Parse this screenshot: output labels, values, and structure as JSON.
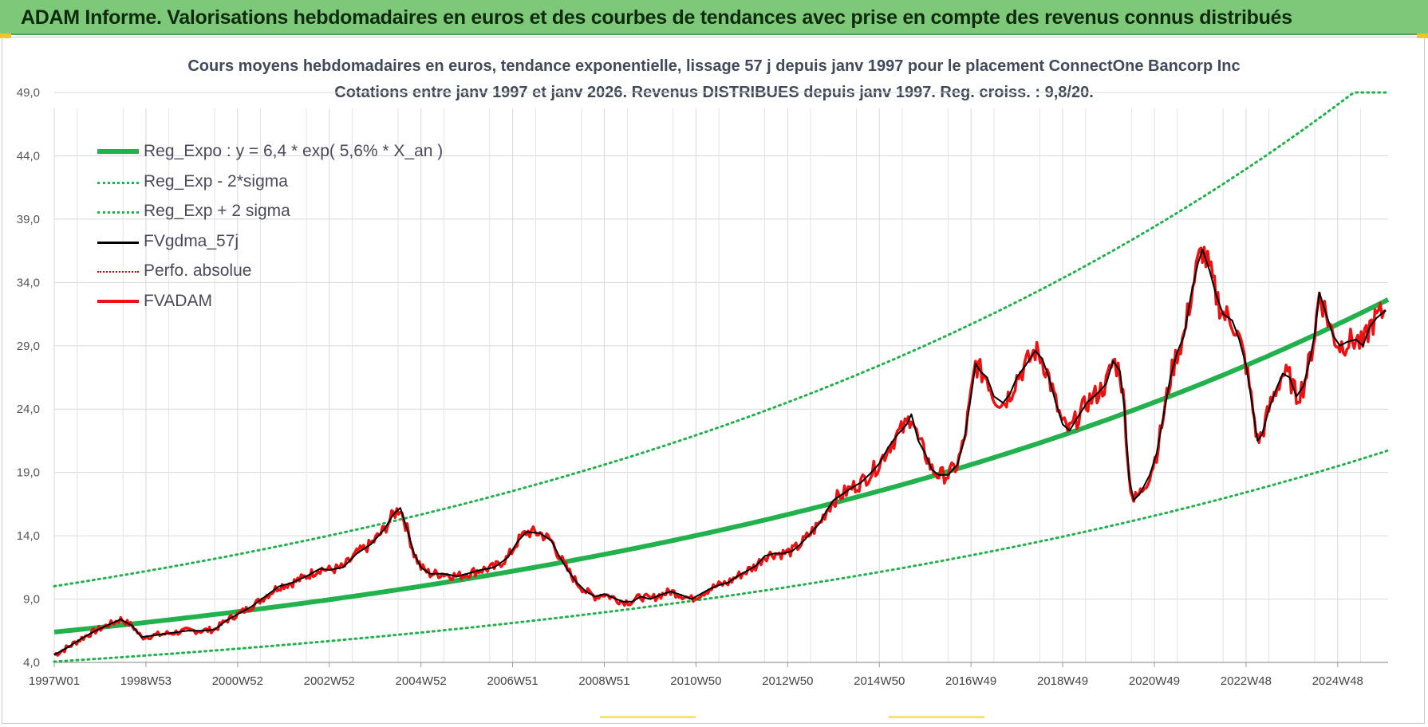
{
  "banner": {
    "title": "ADAM Informe. Valorisations hebdomadaires en euros et des courbes de tendances avec prise en compte des revenus connus distribués"
  },
  "colors": {
    "banner_bg": "#7ec87a",
    "reg_expo": "#22b14c",
    "sigma": "#22b14c",
    "fvgdma": "#000000",
    "perfo": "#e00000",
    "fvadam": "#ee1111"
  },
  "chart_data": {
    "type": "line",
    "title_line1": "Cours moyens hebdomadaires en euros, tendance exponentielle, lissage 57 j depuis janv 1997  pour le placement ConnectOne Bancorp Inc",
    "title_line2": "Cotations entre janv 1997 et janv 2026. Revenus DISTRIBUES depuis janv 1997. Reg. croiss. : 9,8/20.",
    "x_tick_labels": [
      "1997W01",
      "1998W53",
      "2000W52",
      "2002W52",
      "2004W52",
      "2006W51",
      "2008W51",
      "2010W50",
      "2012W50",
      "2014W50",
      "2016W49",
      "2018W49",
      "2020W49",
      "2022W48",
      "2024W48"
    ],
    "x_tick_years": [
      1997.0,
      1999.0,
      2001.0,
      2003.0,
      2005.0,
      2007.0,
      2009.0,
      2011.0,
      2013.0,
      2015.0,
      2017.0,
      2019.0,
      2021.0,
      2023.0,
      2025.0
    ],
    "x_range": [
      1997.0,
      2026.1
    ],
    "y_ticks": [
      "4,0",
      "9,0",
      "14,0",
      "19,0",
      "24,0",
      "29,0",
      "34,0",
      "39,0",
      "44,0",
      "49,0"
    ],
    "y_tick_values": [
      4,
      9,
      14,
      19,
      24,
      29,
      34,
      39,
      44,
      49
    ],
    "ylim": [
      4,
      49
    ],
    "grid": true,
    "legend_position": "top-left",
    "regression": {
      "a": 6.4,
      "rate": 0.056,
      "sigma_lower_factor": 0.635,
      "sigma_upper_factor": 1.565,
      "start_year": 1997.0
    },
    "series": [
      {
        "name": "Reg_Expo : y = 6,4 * exp( 5,6% *  X_an )",
        "style": "thick",
        "color": "#22b14c"
      },
      {
        "name": "Reg_Exp - 2*sigma",
        "style": "dotted",
        "color": "#22b14c"
      },
      {
        "name": "Reg_Exp + 2 sigma",
        "style": "dotted",
        "color": "#22b14c"
      },
      {
        "name": "FVgdma_57j",
        "style": "solid",
        "color": "#000000"
      },
      {
        "name": "Perfo. absolue",
        "style": "dotted",
        "color": "#e00000"
      },
      {
        "name": "FVADAM",
        "style": "thick",
        "color": "#ee1111"
      }
    ],
    "fvadam_points": [
      [
        1997.0,
        4.6
      ],
      [
        1997.3,
        5.2
      ],
      [
        1997.6,
        5.9
      ],
      [
        1997.9,
        6.5
      ],
      [
        1998.2,
        7.0
      ],
      [
        1998.45,
        7.4
      ],
      [
        1998.7,
        6.9
      ],
      [
        1998.9,
        6.0
      ],
      [
        1999.1,
        6.1
      ],
      [
        1999.5,
        6.3
      ],
      [
        1999.9,
        6.5
      ],
      [
        2000.2,
        6.5
      ],
      [
        2000.5,
        6.6
      ],
      [
        2000.75,
        7.3
      ],
      [
        2001.0,
        7.8
      ],
      [
        2001.3,
        8.4
      ],
      [
        2001.6,
        9.2
      ],
      [
        2001.9,
        10.0
      ],
      [
        2002.2,
        10.3
      ],
      [
        2002.5,
        10.8
      ],
      [
        2002.8,
        11.4
      ],
      [
        2003.0,
        11.3
      ],
      [
        2003.3,
        11.5
      ],
      [
        2003.6,
        12.6
      ],
      [
        2003.9,
        13.3
      ],
      [
        2004.2,
        14.5
      ],
      [
        2004.4,
        15.7
      ],
      [
        2004.55,
        16.2
      ],
      [
        2004.7,
        14.5
      ],
      [
        2004.85,
        12.6
      ],
      [
        2005.0,
        11.5
      ],
      [
        2005.2,
        11.0
      ],
      [
        2005.5,
        11.0
      ],
      [
        2005.8,
        10.8
      ],
      [
        2006.0,
        11.0
      ],
      [
        2006.3,
        11.3
      ],
      [
        2006.6,
        11.5
      ],
      [
        2006.9,
        12.3
      ],
      [
        2007.1,
        13.5
      ],
      [
        2007.3,
        14.3
      ],
      [
        2007.6,
        14.2
      ],
      [
        2007.85,
        13.6
      ],
      [
        2008.0,
        12.5
      ],
      [
        2008.2,
        11.3
      ],
      [
        2008.4,
        10.3
      ],
      [
        2008.6,
        9.6
      ],
      [
        2008.8,
        9.2
      ],
      [
        2009.0,
        9.4
      ],
      [
        2009.2,
        9.1
      ],
      [
        2009.4,
        8.8
      ],
      [
        2009.6,
        8.8
      ],
      [
        2009.8,
        9.2
      ],
      [
        2010.0,
        9.0
      ],
      [
        2010.2,
        9.3
      ],
      [
        2010.45,
        9.6
      ],
      [
        2010.7,
        9.3
      ],
      [
        2010.9,
        9.0
      ],
      [
        2011.1,
        9.4
      ],
      [
        2011.3,
        9.8
      ],
      [
        2011.5,
        10.1
      ],
      [
        2011.7,
        10.3
      ],
      [
        2011.9,
        10.8
      ],
      [
        2012.1,
        11.2
      ],
      [
        2012.3,
        11.6
      ],
      [
        2012.5,
        12.4
      ],
      [
        2012.7,
        12.6
      ],
      [
        2012.9,
        12.6
      ],
      [
        2013.1,
        12.8
      ],
      [
        2013.3,
        13.4
      ],
      [
        2013.5,
        14.2
      ],
      [
        2013.7,
        15.0
      ],
      [
        2013.85,
        16.0
      ],
      [
        2014.0,
        16.8
      ],
      [
        2014.2,
        17.3
      ],
      [
        2014.4,
        17.8
      ],
      [
        2014.6,
        18.2
      ],
      [
        2014.8,
        18.9
      ],
      [
        2015.0,
        19.7
      ],
      [
        2015.2,
        21.0
      ],
      [
        2015.4,
        22.0
      ],
      [
        2015.6,
        22.8
      ],
      [
        2015.7,
        23.6
      ],
      [
        2015.85,
        21.5
      ],
      [
        2016.0,
        20.5
      ],
      [
        2016.15,
        19.2
      ],
      [
        2016.3,
        18.8
      ],
      [
        2016.5,
        18.8
      ],
      [
        2016.7,
        19.6
      ],
      [
        2016.85,
        21.5
      ],
      [
        2017.0,
        25.0
      ],
      [
        2017.1,
        27.6
      ],
      [
        2017.2,
        27.0
      ],
      [
        2017.35,
        26.5
      ],
      [
        2017.5,
        25.0
      ],
      [
        2017.7,
        24.5
      ],
      [
        2017.85,
        25.2
      ],
      [
        2018.0,
        26.5
      ],
      [
        2018.2,
        27.5
      ],
      [
        2018.4,
        28.6
      ],
      [
        2018.55,
        28.0
      ],
      [
        2018.7,
        26.5
      ],
      [
        2018.85,
        24.5
      ],
      [
        2019.0,
        22.8
      ],
      [
        2019.15,
        22.3
      ],
      [
        2019.35,
        23.5
      ],
      [
        2019.55,
        24.6
      ],
      [
        2019.75,
        25.2
      ],
      [
        2019.95,
        26.0
      ],
      [
        2020.1,
        27.8
      ],
      [
        2020.25,
        27.0
      ],
      [
        2020.35,
        24.0
      ],
      [
        2020.45,
        18.5
      ],
      [
        2020.55,
        16.8
      ],
      [
        2020.7,
        17.4
      ],
      [
        2020.9,
        18.8
      ],
      [
        2021.05,
        20.5
      ],
      [
        2021.2,
        23.5
      ],
      [
        2021.35,
        26.5
      ],
      [
        2021.5,
        28.5
      ],
      [
        2021.65,
        29.8
      ],
      [
        2021.8,
        33.0
      ],
      [
        2021.95,
        35.5
      ],
      [
        2022.05,
        36.6
      ],
      [
        2022.2,
        35.0
      ],
      [
        2022.35,
        33.0
      ],
      [
        2022.5,
        31.5
      ],
      [
        2022.7,
        31.0
      ],
      [
        2022.85,
        29.5
      ],
      [
        2023.0,
        27.5
      ],
      [
        2023.15,
        24.0
      ],
      [
        2023.25,
        21.5
      ],
      [
        2023.35,
        22.0
      ],
      [
        2023.5,
        24.0
      ],
      [
        2023.65,
        25.5
      ],
      [
        2023.8,
        26.8
      ],
      [
        2023.95,
        26.5
      ],
      [
        2024.1,
        25.0
      ],
      [
        2024.25,
        25.8
      ],
      [
        2024.4,
        28.0
      ],
      [
        2024.5,
        30.0
      ],
      [
        2024.6,
        33.2
      ],
      [
        2024.75,
        31.5
      ],
      [
        2024.9,
        29.8
      ],
      [
        2025.05,
        29.0
      ],
      [
        2025.2,
        29.3
      ],
      [
        2025.4,
        29.5
      ],
      [
        2025.55,
        29.0
      ],
      [
        2025.7,
        30.5
      ],
      [
        2025.85,
        31.2
      ],
      [
        2026.05,
        31.8
      ]
    ]
  },
  "footer_marks": [
    {
      "from_year": 2008.9,
      "to_year": 2011.0
    },
    {
      "from_year": 2015.2,
      "to_year": 2017.3
    }
  ]
}
